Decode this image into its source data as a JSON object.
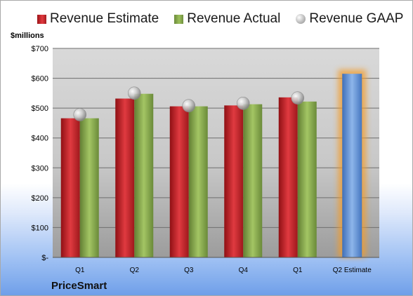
{
  "chart_data": {
    "type": "bar",
    "ylabel": "$millions",
    "categories": [
      "Q1",
      "Q2",
      "Q3",
      "Q4",
      "Q1",
      "Q2 Estimate"
    ],
    "ylim": [
      0,
      700
    ],
    "yticks": [
      {
        "value": 0,
        "label": "$-"
      },
      {
        "value": 100,
        "label": "$100"
      },
      {
        "value": 200,
        "label": "$200"
      },
      {
        "value": 300,
        "label": "$300"
      },
      {
        "value": 400,
        "label": "$400"
      },
      {
        "value": 500,
        "label": "$500"
      },
      {
        "value": 600,
        "label": "$600"
      },
      {
        "value": 700,
        "label": "$700"
      }
    ],
    "series": [
      {
        "name": "Revenue Estimate",
        "type": "bar",
        "color": "#c8262b",
        "values": [
          466,
          532,
          506,
          509,
          536,
          null
        ]
      },
      {
        "name": "Revenue Actual",
        "type": "bar",
        "color": "#8db04c",
        "values": [
          466,
          548,
          506,
          513,
          522,
          null
        ]
      },
      {
        "name": "Revenue GAAP",
        "type": "scatter",
        "color": "#b5b5b5",
        "values": [
          478,
          550,
          508,
          516,
          534,
          null
        ]
      },
      {
        "name": "Q2 Estimate",
        "type": "bar",
        "color": "#5b8ed3",
        "values": [
          null,
          null,
          null,
          null,
          null,
          615
        ]
      }
    ],
    "legend_position": "top",
    "grid": true
  },
  "legend": {
    "estimate": "Revenue Estimate",
    "actual": "Revenue Actual",
    "gaap": "Revenue GAAP"
  },
  "company": "PriceSmart"
}
